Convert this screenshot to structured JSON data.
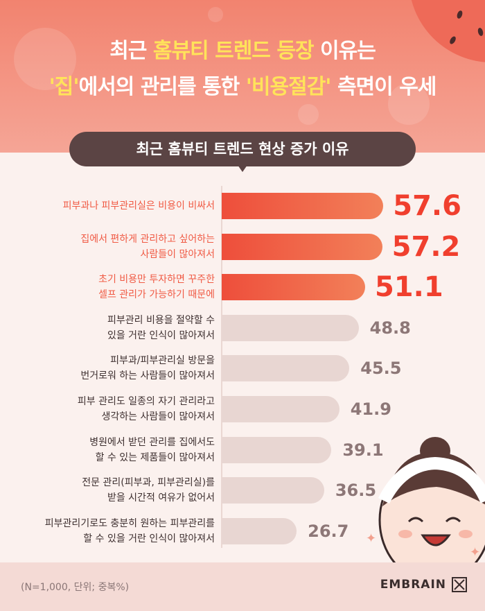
{
  "header": {
    "title_line1": [
      {
        "text": "최근 ",
        "hl": false
      },
      {
        "text": "홈뷰티 트렌드 등장",
        "hl": true
      },
      {
        "text": " 이유는",
        "hl": false
      }
    ],
    "title_line2": [
      {
        "text": "'집'",
        "hl": true
      },
      {
        "text": "에서의 관리를 통한 ",
        "hl": false
      },
      {
        "text": "'비용절감'",
        "hl": true
      },
      {
        "text": " 측면이 우세",
        "hl": false
      }
    ]
  },
  "pill_title": "최근 홈뷰티 트렌드 현상 증가 이유",
  "chart_data": {
    "type": "bar",
    "orientation": "horizontal",
    "categories": [
      [
        "피부과나 피부관리실은 비용이 비싸서"
      ],
      [
        "집에서 편하게 관리하고 싶어하는",
        "사람들이 많아져서"
      ],
      [
        "초기 비용만 투자하면 꾸주한",
        "셀프 관리가 가능하기 때문에"
      ],
      [
        "피부관리 비용을 절약할 수",
        "있을 거란 인식이 많아져서"
      ],
      [
        "피부과/피부관리실 방문을",
        "번거로워 하는 사람들이 많아져서"
      ],
      [
        "피부 관리도 일종의 자기 관리라고",
        "생각하는 사람들이 많아져서"
      ],
      [
        "병원에서 받던 관리를 집에서도",
        "할 수 있는 제품들이 많아져서"
      ],
      [
        "전문 관리(피부과, 피부관리실)를",
        "받을 시간적 여유가 없어서"
      ],
      [
        "피부관리기로도 충분히 원하는 피부관리를",
        "할 수 있을 거란 인식이 많아져서"
      ]
    ],
    "values": [
      57.6,
      57.2,
      51.1,
      48.8,
      45.5,
      41.9,
      39.1,
      36.5,
      26.7
    ],
    "value_labels": [
      "57.6",
      "57.2",
      "51.1",
      "48.8",
      "45.5",
      "41.9",
      "39.1",
      "36.5",
      "26.7"
    ],
    "highlight_top": 3,
    "xlim": [
      0,
      100
    ]
  },
  "footer": {
    "note": "(N=1,000, 단위; 중복%)",
    "brand": "EMBRAIN"
  },
  "colors": {
    "header_bg": "#f2836f",
    "highlight_text": "#ffe35a",
    "top_bar": "#ee4e3b",
    "top_value": "#f03f2e",
    "other_bar": "#e8d6d2",
    "other_value": "#8d7777",
    "pill_bg": "#5b4444"
  }
}
